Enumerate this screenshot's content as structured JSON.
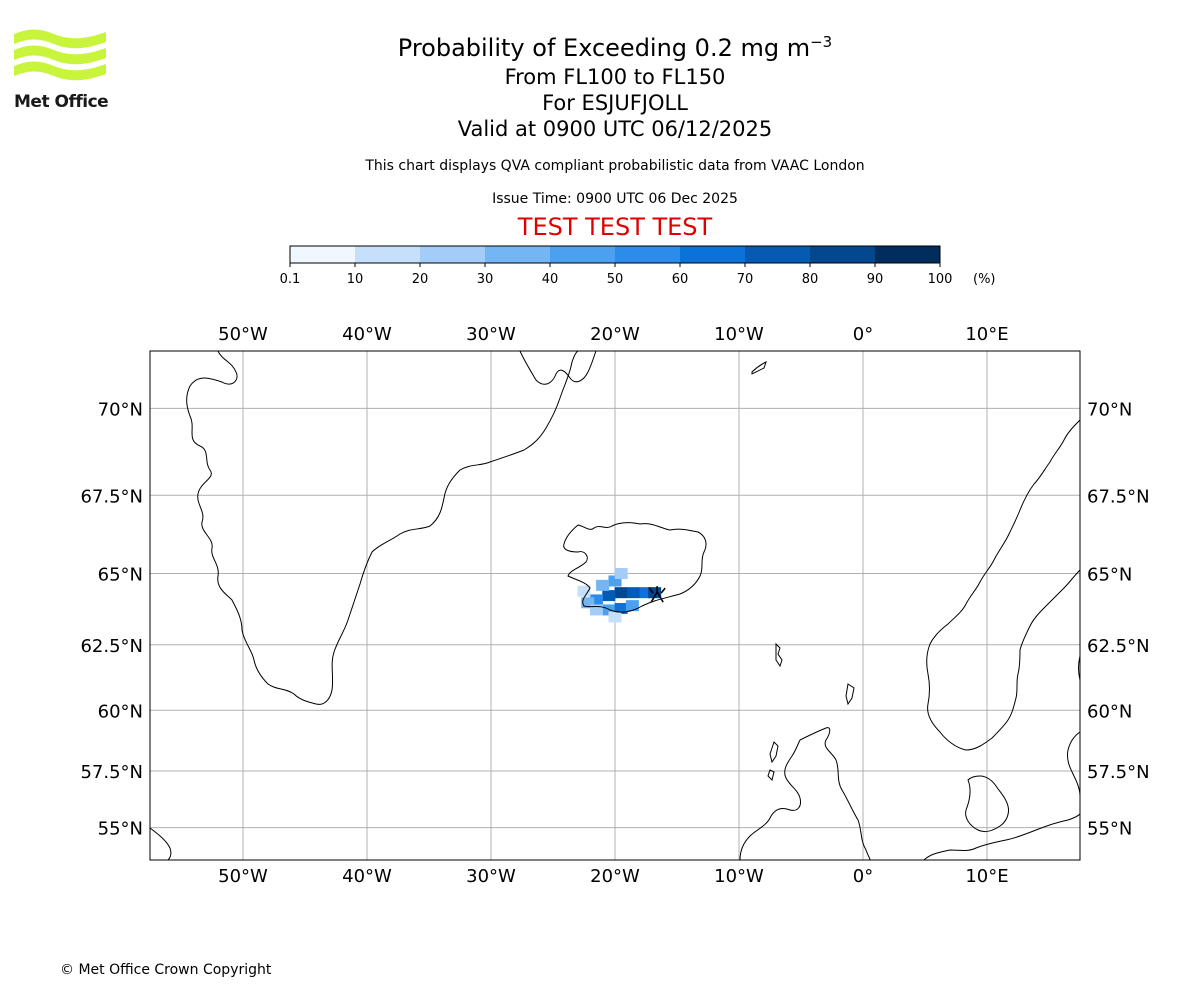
{
  "branding": {
    "logo_text": "Met Office",
    "logo_color": "#c8f53c"
  },
  "header": {
    "title_main": "Probability of Exceeding 0.2 mg m",
    "title_superscript": "−3",
    "levels": "From FL100 to FL150",
    "volcano": "For ESJUFJOLL",
    "valid": "Valid at 0900 UTC 06/12/2025",
    "description": "This chart displays QVA compliant probabilistic data from VAAC London",
    "issue_time": "Issue Time: 0900 UTC 06 Dec 2025",
    "test_banner": "TEST TEST TEST",
    "test_color": "#e00000"
  },
  "colorbar": {
    "ticks": [
      "0.1",
      "10",
      "20",
      "30",
      "40",
      "50",
      "60",
      "70",
      "80",
      "90",
      "100"
    ],
    "unit": "(%)",
    "colors": [
      "#f0f7ff",
      "#c6e0fb",
      "#a3cdf8",
      "#74b5f4",
      "#4ca0f0",
      "#2b8ceb",
      "#0a72d8",
      "#055bb3",
      "#03478f",
      "#002c5e"
    ]
  },
  "map": {
    "lon_labels": [
      "50°W",
      "40°W",
      "30°W",
      "20°W",
      "10°W",
      "0°",
      "10°E"
    ],
    "lon_values": [
      -50,
      -40,
      -30,
      -20,
      -10,
      0,
      10
    ],
    "lat_labels": [
      "70°N",
      "67.5°N",
      "65°N",
      "62.5°N",
      "60°N",
      "57.5°N",
      "55°N"
    ],
    "lat_values": [
      70,
      67.5,
      65,
      62.5,
      60,
      57.5,
      55
    ],
    "extent_lon": [
      -57.5,
      17.5
    ],
    "extent_lat": [
      53.5,
      71.5
    ],
    "grid": true,
    "coast_color": "#000000",
    "grid_color": "#b0b0b0",
    "plume": [
      {
        "lon": -19.5,
        "lat": 64.35,
        "prob": 85
      },
      {
        "lon": -20.5,
        "lat": 64.25,
        "prob": 70
      },
      {
        "lon": -21.5,
        "lat": 64.1,
        "prob": 55
      },
      {
        "lon": -18.5,
        "lat": 64.35,
        "prob": 75
      },
      {
        "lon": -17.5,
        "lat": 64.35,
        "prob": 60
      },
      {
        "lon": -20.0,
        "lat": 64.75,
        "prob": 40
      },
      {
        "lon": -19.5,
        "lat": 65.0,
        "prob": 20
      },
      {
        "lon": -21.0,
        "lat": 64.6,
        "prob": 30
      },
      {
        "lon": -22.2,
        "lat": 64.0,
        "prob": 35
      },
      {
        "lon": -20.5,
        "lat": 63.75,
        "prob": 40
      },
      {
        "lon": -19.5,
        "lat": 63.8,
        "prob": 60
      },
      {
        "lon": -21.5,
        "lat": 63.75,
        "prob": 25
      },
      {
        "lon": -20.0,
        "lat": 63.5,
        "prob": 15
      },
      {
        "lon": -18.6,
        "lat": 63.9,
        "prob": 45
      },
      {
        "lon": -16.8,
        "lat": 64.35,
        "prob": 80
      },
      {
        "lon": -22.5,
        "lat": 64.4,
        "prob": 15
      }
    ]
  },
  "footer": {
    "copyright": "© Met Office Crown Copyright"
  }
}
